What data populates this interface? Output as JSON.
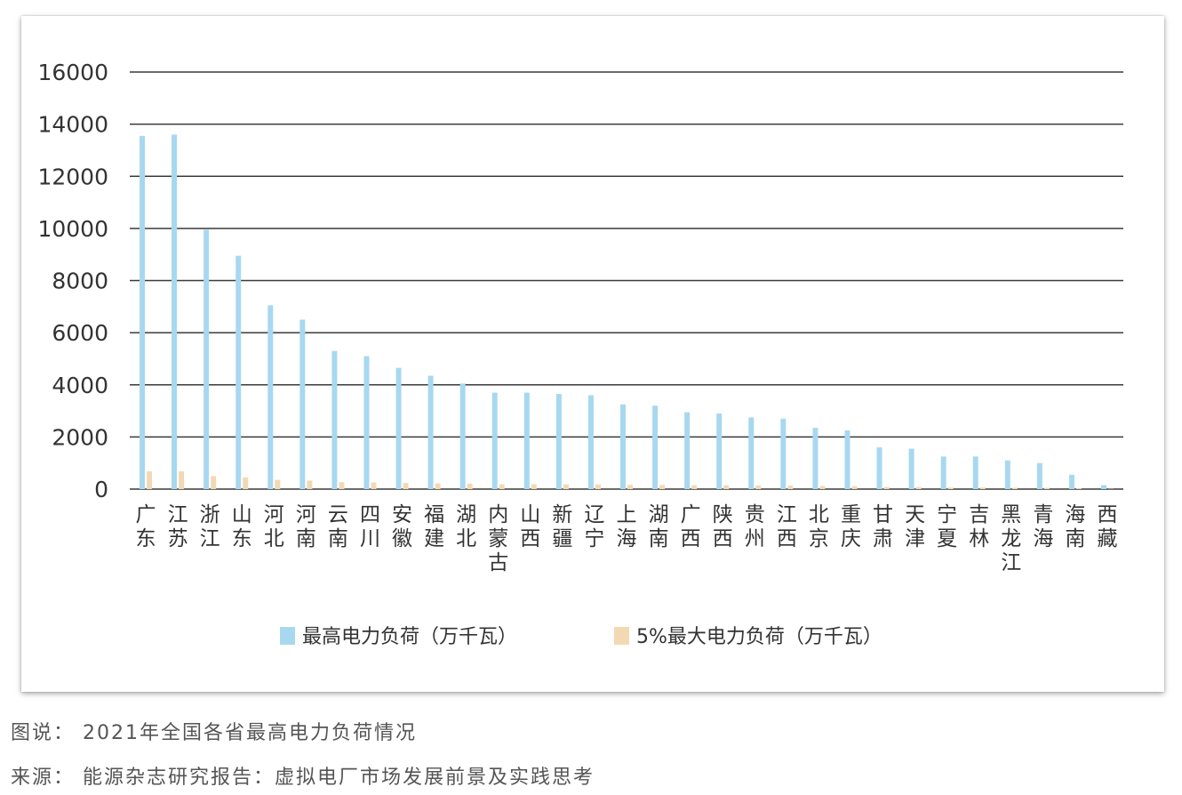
{
  "chart_data": {
    "type": "bar",
    "categories": [
      "广东",
      "江苏",
      "浙江",
      "山东",
      "河北",
      "河南",
      "云南",
      "四川",
      "安徽",
      "福建",
      "湖北",
      "内蒙古",
      "山西",
      "新疆",
      "辽宁",
      "上海",
      "湖南",
      "广西",
      "陕西",
      "贵州",
      "江西",
      "北京",
      "重庆",
      "甘肃",
      "天津",
      "宁夏",
      "吉林",
      "黑龙江",
      "青海",
      "海南",
      "西藏"
    ],
    "series": [
      {
        "name": "最高电力负荷（万千瓦）",
        "color": "#a8d8f0",
        "values": [
          13550,
          13600,
          9950,
          8950,
          7050,
          6500,
          5300,
          5100,
          4650,
          4350,
          4050,
          3700,
          3700,
          3650,
          3600,
          3250,
          3200,
          2950,
          2900,
          2750,
          2700,
          2350,
          2250,
          1600,
          1550,
          1250,
          1250,
          1100,
          1000,
          550,
          150
        ]
      },
      {
        "name": "5%最大电力负荷（万千瓦）",
        "color": "#f3d9b3",
        "values": [
          678,
          680,
          498,
          448,
          353,
          325,
          265,
          255,
          233,
          218,
          203,
          185,
          185,
          183,
          180,
          163,
          160,
          148,
          145,
          138,
          135,
          118,
          113,
          80,
          78,
          63,
          63,
          55,
          50,
          28,
          8
        ]
      }
    ],
    "yticks": [
      "0",
      "2000",
      "4000",
      "6000",
      "8000",
      "10000",
      "12000",
      "14000",
      "16000"
    ],
    "ylim": [
      0,
      16000
    ],
    "grid": true,
    "legend_position": "bottom"
  },
  "caption": {
    "figure": "图说： 2021年全国各省最高电力负荷情况",
    "source": "来源： 能源杂志研究报告：虚拟电厂市场发展前景及实践思考"
  }
}
